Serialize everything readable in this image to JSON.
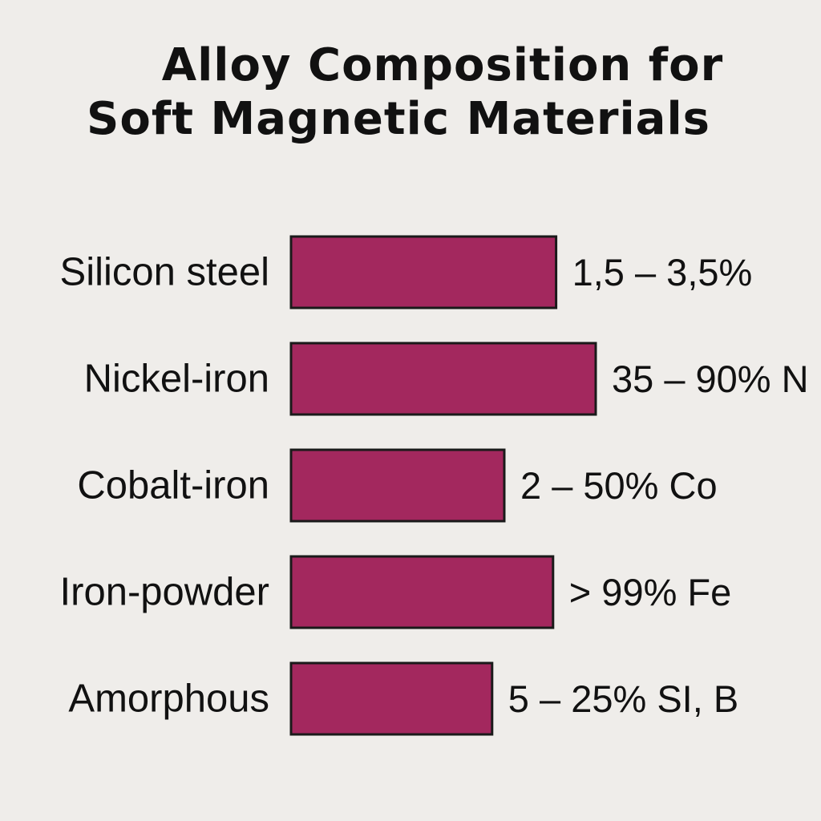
{
  "chart_data": {
    "type": "bar",
    "orientation": "horizontal",
    "title": "Alloy Composition for Soft Magnetic Materials",
    "title_lines": [
      "Alloy Composition for",
      "Soft Magnetic Materials"
    ],
    "categories": [
      "Silicon steel",
      "Nickel-iron",
      "Cobalt-iron",
      "Iron-powder",
      "Amorphous"
    ],
    "values": [
      0.87,
      1.0,
      0.7,
      0.86,
      0.66
    ],
    "value_labels": [
      "1,5 – 3,5%",
      "35 – 90% N",
      "2 – 50% Co",
      "> 99% Fe",
      "5 – 25% SI, B"
    ],
    "xlabel": "",
    "ylabel": "",
    "grid": false,
    "legend": "none",
    "bar_color": "#a3285e",
    "bar_edge_color": "#1a1a1a"
  }
}
